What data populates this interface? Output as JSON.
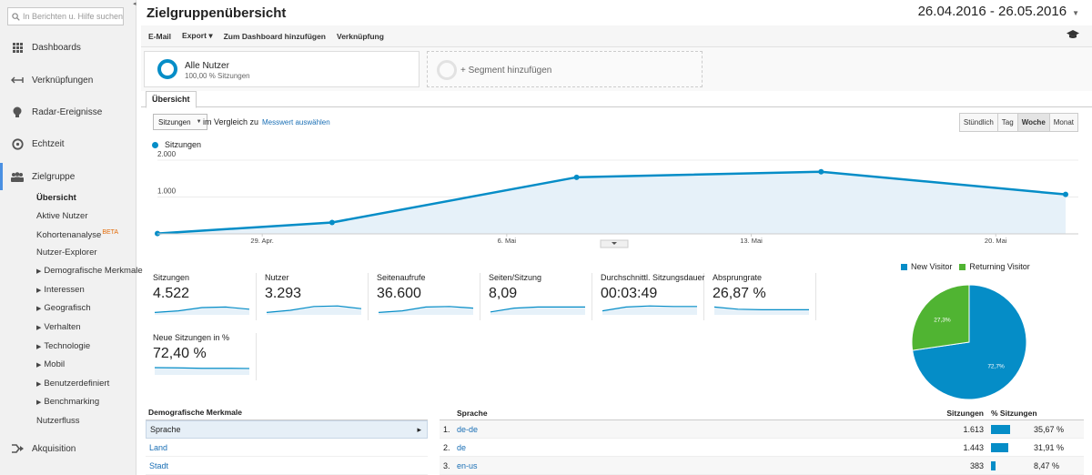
{
  "sidebar": {
    "search_placeholder": "In Berichten u. Hilfe suchen",
    "nav": [
      {
        "label": "Dashboards",
        "icon": "grid-icon"
      },
      {
        "label": "Verknüpfungen",
        "icon": "shortcut-arrow-icon"
      },
      {
        "label": "Radar-Ereignisse",
        "icon": "lightbulb-icon"
      },
      {
        "label": "Echtzeit",
        "icon": "realtime-icon"
      },
      {
        "label": "Zielgruppe",
        "icon": "people-icon"
      },
      {
        "label": "Akquisition",
        "icon": "acquisition-icon"
      }
    ],
    "sub_items": [
      {
        "label": "Übersicht"
      },
      {
        "label": "Aktive Nutzer"
      },
      {
        "label": "Kohortenanalyse",
        "badge": "BETA"
      },
      {
        "label": "Nutzer-Explorer"
      },
      {
        "label": "Demografische Merkmale"
      },
      {
        "label": "Interessen"
      },
      {
        "label": "Geografisch"
      },
      {
        "label": "Verhalten"
      },
      {
        "label": "Technologie"
      },
      {
        "label": "Mobil"
      },
      {
        "label": "Benutzerdefiniert"
      },
      {
        "label": "Benchmarking"
      },
      {
        "label": "Nutzerfluss"
      }
    ]
  },
  "header": {
    "title": "Zielgruppenübersicht",
    "date_range": "26.04.2016 - 26.05.2016"
  },
  "toolbar": {
    "email": "E-Mail",
    "export": "Export",
    "export_caret": "▾",
    "add_dashboard": "Zum Dashboard hinzufügen",
    "shortcut": "Verknüpfung"
  },
  "segments": {
    "active_title": "Alle Nutzer",
    "active_sub": "100,00 % Sitzungen",
    "add_label": "+ Segment hinzufügen"
  },
  "tabs": {
    "overview": "Übersicht"
  },
  "controls": {
    "metric": "Sitzungen",
    "compare_text": "im Vergleich zu",
    "compare_link": "Messwert auswählen",
    "granularity": [
      "Stündlich",
      "Tag",
      "Woche",
      "Monat"
    ],
    "granularity_selected": "Woche"
  },
  "chart_data": [
    {
      "type": "area",
      "series": [
        {
          "name": "Sitzungen",
          "values": [
            10,
            310,
            1535,
            1685,
            1070
          ]
        }
      ],
      "x": [
        "2016-04-26",
        "2016-05-01",
        "2016-05-08",
        "2016-05-15",
        "2016-05-22"
      ],
      "x_tick_labels": [
        "29. Apr.",
        "6. Mai",
        "13. Mai",
        "20. Mai"
      ],
      "y_tick_labels": [
        "2.000",
        "1.000"
      ],
      "ylim": [
        0,
        2000
      ],
      "color": "#058dc7"
    },
    {
      "type": "pie",
      "categories": [
        "New Visitor",
        "Returning Visitor"
      ],
      "values": [
        72.7,
        27.3
      ],
      "labels": [
        "72,7%",
        "27,3%"
      ],
      "colors": [
        "#058dc7",
        "#50b432"
      ]
    }
  ],
  "scorecards": [
    {
      "label": "Sitzungen",
      "value": "4.522",
      "trend": [
        0.05,
        0.2,
        0.5,
        0.55,
        0.35
      ]
    },
    {
      "label": "Nutzer",
      "value": "3.293",
      "trend": [
        0.05,
        0.25,
        0.6,
        0.65,
        0.4
      ]
    },
    {
      "label": "Seitenaufrufe",
      "value": "36.600",
      "trend": [
        0.05,
        0.2,
        0.55,
        0.6,
        0.45
      ]
    },
    {
      "label": "Seiten/Sitzung",
      "value": "8,09",
      "trend": [
        0.1,
        0.45,
        0.55,
        0.55,
        0.55
      ]
    },
    {
      "label": "Durchschnittl. Sitzungsdauer",
      "value": "00:03:49",
      "trend": [
        0.2,
        0.55,
        0.65,
        0.6,
        0.6
      ]
    },
    {
      "label": "Absprungrate",
      "value": "26,87 %",
      "trend": [
        0.55,
        0.35,
        0.3,
        0.3,
        0.3
      ]
    },
    {
      "label": "Neue Sitzungen in %",
      "value": "72,40 %",
      "trend": [
        0.5,
        0.48,
        0.44,
        0.44,
        0.42
      ]
    }
  ],
  "demographics": {
    "header": "Demografische Merkmale",
    "rows": [
      "Sprache",
      "Land",
      "Stadt"
    ],
    "arrow": "▸"
  },
  "language_table": {
    "headers": {
      "lang": "Sprache",
      "sessions": "Sitzungen",
      "pct": "% Sitzungen"
    },
    "rows": [
      {
        "idx": "1.",
        "lang": "de-de",
        "sessions": "1.613",
        "pct": "35,67 %",
        "share": 35.67
      },
      {
        "idx": "2.",
        "lang": "de",
        "sessions": "1.443",
        "pct": "31,91 %",
        "share": 31.91
      },
      {
        "idx": "3.",
        "lang": "en-us",
        "sessions": "383",
        "pct": "8,47 %",
        "share": 8.47
      }
    ]
  }
}
